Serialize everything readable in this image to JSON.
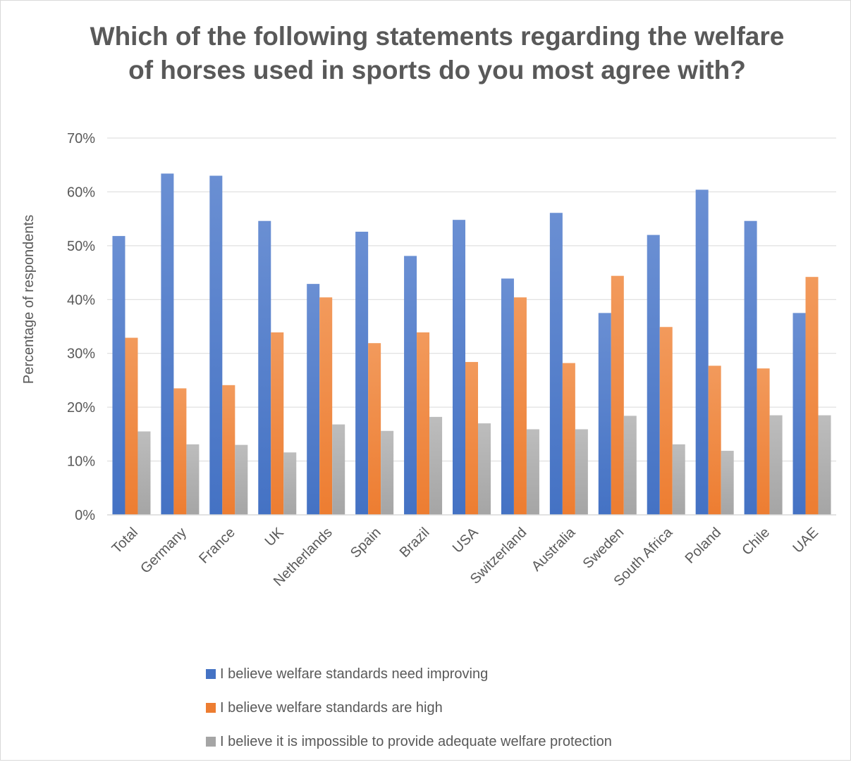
{
  "chart_data": {
    "type": "bar",
    "title": "Which of the following statements regarding the welfare of horses used in sports do you most agree with?",
    "ylabel": "Percentage of respondents",
    "xlabel": "",
    "ylim": [
      0,
      0.7
    ],
    "yticks": [
      "0%",
      "10%",
      "20%",
      "30%",
      "40%",
      "50%",
      "60%",
      "70%"
    ],
    "grid": true,
    "legend_position": "bottom",
    "categories": [
      "Total",
      "Germany",
      "France",
      "UK",
      "Netherlands",
      "Spain",
      "Brazil",
      "USA",
      "Switzerland",
      "Australia",
      "Sweden",
      "South Africa",
      "Poland",
      "Chile",
      "UAE"
    ],
    "series": [
      {
        "name": "I believe welfare standards need improving",
        "color": "#4472c4",
        "values": [
          0.518,
          0.634,
          0.63,
          0.546,
          0.429,
          0.526,
          0.481,
          0.548,
          0.439,
          0.561,
          0.375,
          0.52,
          0.604,
          0.546,
          0.375
        ]
      },
      {
        "name": "I believe welfare standards are high",
        "color": "#ed7d31",
        "values": [
          0.329,
          0.235,
          0.241,
          0.339,
          0.404,
          0.319,
          0.339,
          0.284,
          0.404,
          0.282,
          0.444,
          0.349,
          0.277,
          0.272,
          0.442
        ]
      },
      {
        "name": "I believe it is impossible to provide adequate welfare protection",
        "color": "#a5a5a5",
        "values": [
          0.155,
          0.131,
          0.13,
          0.116,
          0.168,
          0.156,
          0.182,
          0.17,
          0.159,
          0.159,
          0.184,
          0.131,
          0.119,
          0.185,
          0.185
        ]
      }
    ]
  }
}
